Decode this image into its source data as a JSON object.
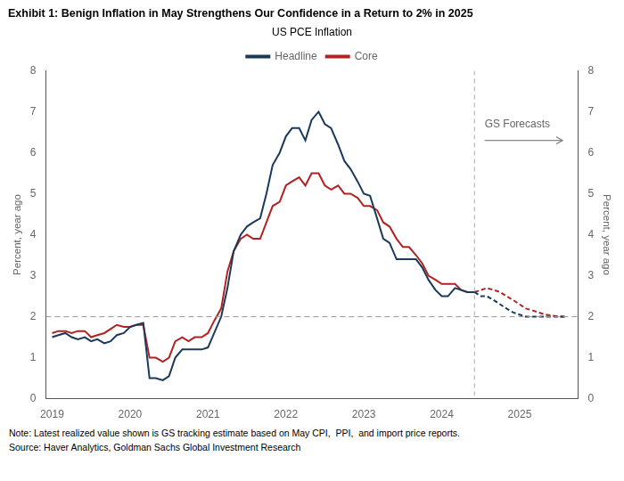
{
  "chart_data": {
    "type": "line",
    "title": "Exhibit 1: Benign Inflation in May Strengthens Our Confidence in a Return to 2% in 2025",
    "subtitle": "US PCE Inflation",
    "ylabel": "Percent, year ago",
    "y2label": "Percent, year ago",
    "note": "Note: Latest realized value shown is GS tracking estimate based on May CPI,  PPI,  and import price reports.",
    "source": "Source: Haver Analytics, Goldman Sachs Global Investment Research",
    "xlim": [
      2018.92,
      2025.75
    ],
    "xticks": [
      2019,
      2020,
      2021,
      2022,
      2023,
      2024,
      2025
    ],
    "ylim": [
      0,
      8
    ],
    "yticks": [
      0,
      1,
      2,
      3,
      4,
      5,
      6,
      7,
      8
    ],
    "y2lim": [
      0,
      8
    ],
    "y2ticks": [
      0,
      1,
      2,
      3,
      4,
      5,
      6,
      7,
      8
    ],
    "grid": false,
    "legend": "top",
    "hlines": [
      2.0
    ],
    "vlines": [
      2024.42
    ],
    "annotations": [
      {
        "text": "GS Forecasts",
        "x": 2024.55,
        "y": 6.55,
        "arrow_x": [
          2024.55,
          2025.55
        ],
        "arrow_y": 6.3
      }
    ],
    "series": [
      {
        "name": "Headline",
        "color": "#1a3a5c",
        "line_style": "solid",
        "x": [
          2019.0,
          2019.08,
          2019.17,
          2019.25,
          2019.33,
          2019.42,
          2019.5,
          2019.58,
          2019.67,
          2019.75,
          2019.83,
          2019.92,
          2020.0,
          2020.08,
          2020.17,
          2020.25,
          2020.33,
          2020.42,
          2020.5,
          2020.58,
          2020.67,
          2020.75,
          2020.83,
          2020.92,
          2021.0,
          2021.08,
          2021.17,
          2021.25,
          2021.33,
          2021.42,
          2021.5,
          2021.58,
          2021.67,
          2021.75,
          2021.83,
          2021.92,
          2022.0,
          2022.08,
          2022.17,
          2022.25,
          2022.33,
          2022.42,
          2022.5,
          2022.58,
          2022.67,
          2022.75,
          2022.83,
          2022.92,
          2023.0,
          2023.08,
          2023.17,
          2023.25,
          2023.33,
          2023.42,
          2023.5,
          2023.58,
          2023.67,
          2023.75,
          2023.83,
          2023.92,
          2024.0,
          2024.08,
          2024.17,
          2024.25,
          2024.33,
          2024.42
        ],
        "values": [
          1.5,
          1.55,
          1.6,
          1.5,
          1.45,
          1.5,
          1.4,
          1.45,
          1.35,
          1.4,
          1.55,
          1.6,
          1.75,
          1.8,
          1.85,
          0.5,
          0.5,
          0.45,
          0.55,
          1.0,
          1.2,
          1.2,
          1.2,
          1.2,
          1.25,
          1.6,
          2.0,
          2.7,
          3.6,
          4.0,
          4.2,
          4.3,
          4.4,
          5.0,
          5.7,
          6.0,
          6.4,
          6.6,
          6.6,
          6.3,
          6.8,
          7.0,
          6.7,
          6.6,
          6.2,
          5.8,
          5.6,
          5.3,
          5.0,
          4.95,
          4.4,
          3.9,
          3.8,
          3.4,
          3.4,
          3.4,
          3.4,
          3.2,
          2.9,
          2.65,
          2.5,
          2.5,
          2.7,
          2.65,
          2.6,
          2.6
        ]
      },
      {
        "name": "Core",
        "color": "#b22222",
        "line_style": "solid",
        "x": [
          2019.0,
          2019.08,
          2019.17,
          2019.25,
          2019.33,
          2019.42,
          2019.5,
          2019.58,
          2019.67,
          2019.75,
          2019.83,
          2019.92,
          2020.0,
          2020.08,
          2020.17,
          2020.25,
          2020.33,
          2020.42,
          2020.5,
          2020.58,
          2020.67,
          2020.75,
          2020.83,
          2020.92,
          2021.0,
          2021.08,
          2021.17,
          2021.25,
          2021.33,
          2021.42,
          2021.5,
          2021.58,
          2021.67,
          2021.75,
          2021.83,
          2021.92,
          2022.0,
          2022.08,
          2022.17,
          2022.25,
          2022.33,
          2022.42,
          2022.5,
          2022.58,
          2022.67,
          2022.75,
          2022.83,
          2022.92,
          2023.0,
          2023.08,
          2023.17,
          2023.25,
          2023.33,
          2023.42,
          2023.5,
          2023.58,
          2023.67,
          2023.75,
          2023.83,
          2023.92,
          2024.0,
          2024.08,
          2024.17,
          2024.25,
          2024.33,
          2024.42
        ],
        "values": [
          1.6,
          1.65,
          1.65,
          1.6,
          1.65,
          1.65,
          1.5,
          1.55,
          1.6,
          1.7,
          1.8,
          1.75,
          1.75,
          1.8,
          1.8,
          1.0,
          1.0,
          0.9,
          1.0,
          1.4,
          1.5,
          1.4,
          1.5,
          1.5,
          1.6,
          1.9,
          2.2,
          3.1,
          3.6,
          3.9,
          4.0,
          3.9,
          3.9,
          4.3,
          4.7,
          4.8,
          5.2,
          5.3,
          5.4,
          5.2,
          5.5,
          5.5,
          5.2,
          5.1,
          5.2,
          5.0,
          5.0,
          4.9,
          4.7,
          4.7,
          4.6,
          4.3,
          4.2,
          3.9,
          3.7,
          3.7,
          3.5,
          3.3,
          3.0,
          2.9,
          2.8,
          2.8,
          2.8,
          2.65,
          2.6,
          2.6
        ]
      },
      {
        "color": "#1a3a5c",
        "line_style": "dashed",
        "x": [
          2024.42,
          2024.5,
          2024.58,
          2024.67,
          2024.75,
          2024.83,
          2024.92,
          2025.0,
          2025.08,
          2025.17,
          2025.25,
          2025.33,
          2025.5,
          2025.58
        ],
        "values": [
          2.6,
          2.5,
          2.5,
          2.4,
          2.3,
          2.2,
          2.1,
          2.05,
          2.0,
          2.0,
          2.0,
          2.0,
          2.0,
          2.0
        ]
      },
      {
        "color": "#b22222",
        "line_style": "dashed",
        "x": [
          2024.42,
          2024.5,
          2024.58,
          2024.67,
          2024.75,
          2024.83,
          2024.92,
          2025.0,
          2025.08,
          2025.17,
          2025.25,
          2025.33,
          2025.5,
          2025.58
        ],
        "values": [
          2.6,
          2.65,
          2.7,
          2.65,
          2.6,
          2.5,
          2.4,
          2.3,
          2.2,
          2.15,
          2.1,
          2.05,
          2.0,
          2.0
        ]
      }
    ]
  }
}
